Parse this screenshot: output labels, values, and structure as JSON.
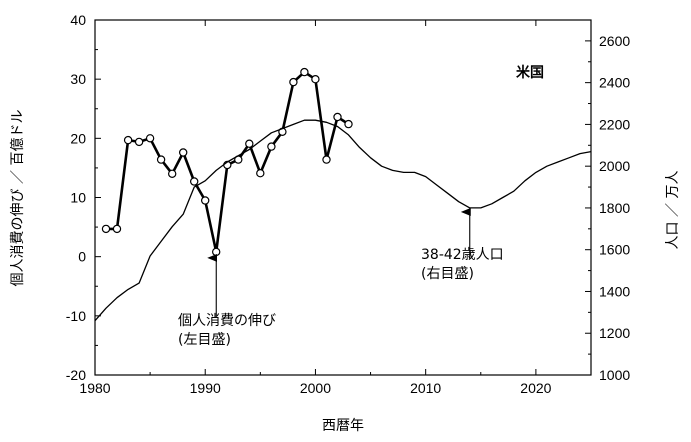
{
  "chart_data": {
    "type": "line",
    "xlabel": "西暦年",
    "ylabel_left": "個人消費の伸び ／ 百億ドル",
    "ylabel_right": "人口 ／ 万人",
    "country_label": "米国",
    "xlim": [
      1980,
      2025
    ],
    "ylim_left": [
      -20,
      40
    ],
    "ylim_right": [
      1000,
      2700
    ],
    "x_ticks": [
      1980,
      1990,
      2000,
      2010,
      2020
    ],
    "y_left_ticks": [
      -20,
      -10,
      0,
      10,
      20,
      30,
      40
    ],
    "y_right_ticks": [
      1000,
      1200,
      1400,
      1600,
      1800,
      2000,
      2200,
      2400,
      2600
    ],
    "grid": false,
    "series": [
      {
        "name": "個人消費の伸び",
        "axis": "left",
        "markers": true,
        "x": [
          1981,
          1982,
          1983,
          1984,
          1985,
          1986,
          1987,
          1988,
          1989,
          1990,
          1991,
          1992,
          1993,
          1994,
          1995,
          1996,
          1997,
          1998,
          1999,
          2000,
          2001,
          2002,
          2003
        ],
        "y": [
          4.7,
          4.7,
          19.7,
          19.4,
          20.0,
          16.4,
          14.0,
          17.6,
          12.7,
          9.5,
          0.8,
          15.5,
          16.4,
          19.1,
          14.1,
          18.6,
          21.1,
          29.5,
          31.2,
          30.0,
          16.4,
          23.6,
          22.4
        ]
      },
      {
        "name": "38-42歳人口",
        "axis": "right",
        "markers": false,
        "x": [
          1980,
          1981,
          1982,
          1983,
          1984,
          1985,
          1986,
          1987,
          1988,
          1989,
          1990,
          1991,
          1992,
          1993,
          1994,
          1995,
          1996,
          1997,
          1998,
          1999,
          2000,
          2001,
          2002,
          2003,
          2004,
          2005,
          2006,
          2007,
          2008,
          2009,
          2010,
          2011,
          2012,
          2013,
          2014,
          2015,
          2016,
          2017,
          2018,
          2019,
          2020,
          2021,
          2022,
          2023,
          2024,
          2025
        ],
        "y": [
          1260,
          1320,
          1370,
          1410,
          1440,
          1570,
          1640,
          1710,
          1770,
          1900,
          1930,
          1980,
          2020,
          2050,
          2080,
          2120,
          2160,
          2180,
          2200,
          2220,
          2220,
          2210,
          2190,
          2150,
          2090,
          2040,
          2000,
          1980,
          1970,
          1970,
          1950,
          1910,
          1870,
          1830,
          1800,
          1800,
          1820,
          1850,
          1880,
          1930,
          1970,
          2000,
          2020,
          2040,
          2060,
          2070
        ]
      }
    ],
    "annotations": [
      {
        "lines": [
          "個人消費の伸び",
          "(左目盛)"
        ],
        "arrow_to": {
          "x": 1991,
          "y": 0.8,
          "axis": "left"
        }
      },
      {
        "lines": [
          "38-42歳人口",
          "(右目盛)"
        ],
        "arrow_to": {
          "x": 2014,
          "y": 1800,
          "axis": "right"
        }
      }
    ]
  }
}
